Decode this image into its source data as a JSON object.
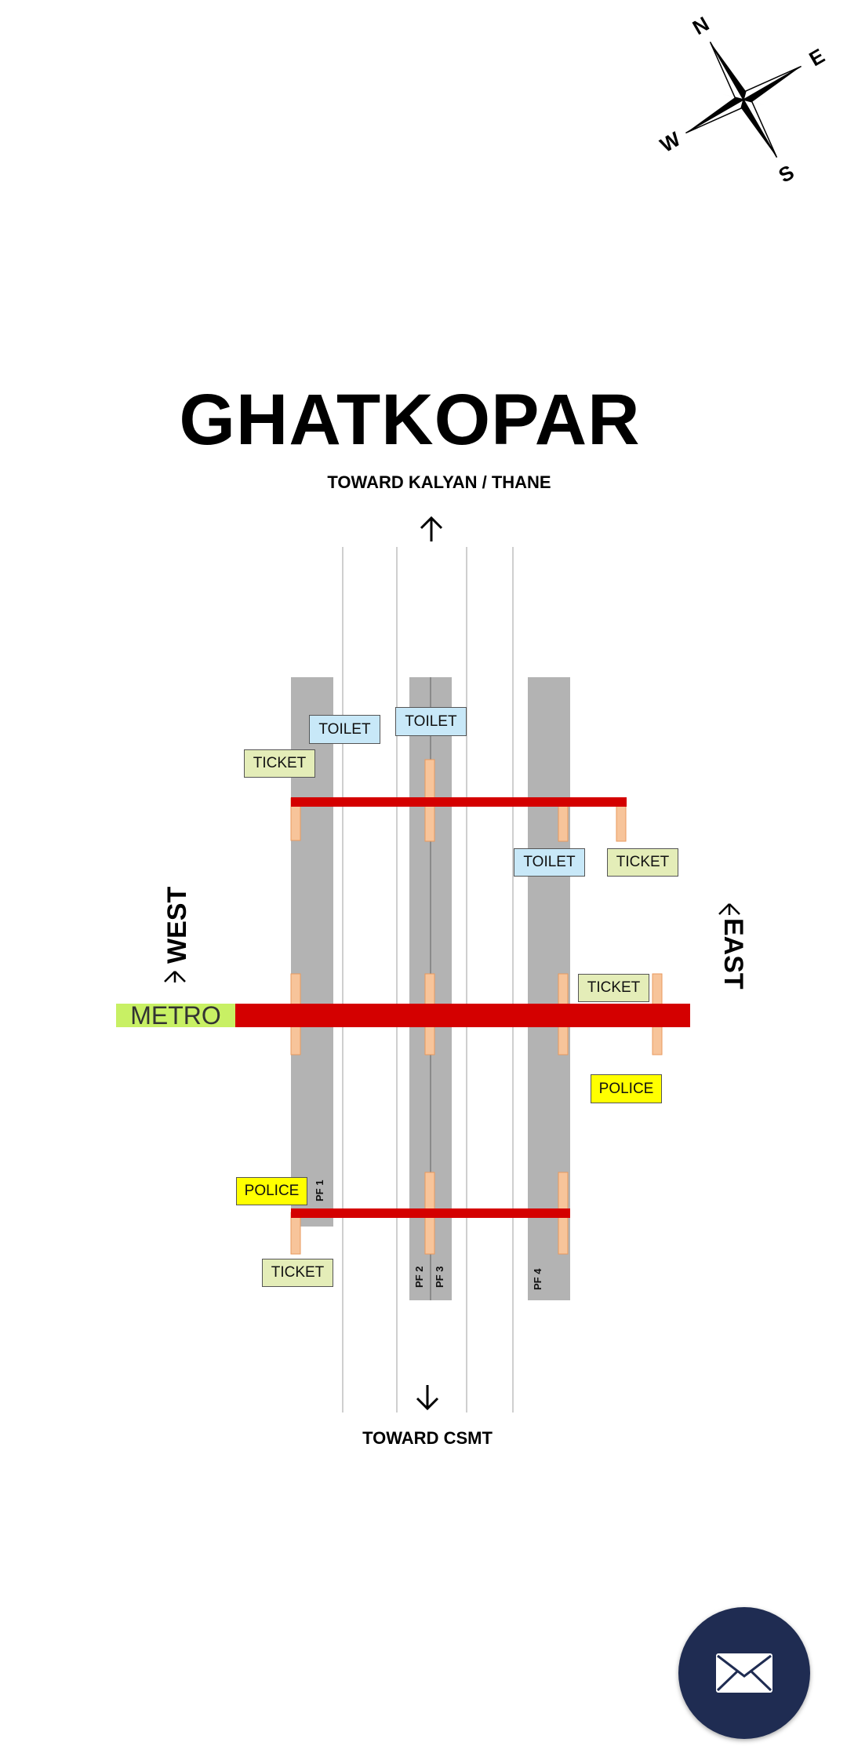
{
  "station": {
    "name": "GHATKOPAR",
    "toward_north": "TOWARD KALYAN / THANE",
    "toward_south": "TOWARD CSMT",
    "west_label": "WEST",
    "east_label": "EAST"
  },
  "compass": {
    "n": "N",
    "e": "E",
    "s": "S",
    "w": "W"
  },
  "platforms": {
    "pf1": "PF 1",
    "pf2": "PF 2",
    "pf3": "PF 3",
    "pf4": "PF 4"
  },
  "facilities": {
    "toilet_1": "TOILET",
    "toilet_2": "TOILET",
    "toilet_3": "TOILET",
    "ticket_1": "TICKET",
    "ticket_2": "TICKET",
    "ticket_3": "TICKET",
    "ticket_4": "TICKET",
    "police_1": "POLICE",
    "police_2": "POLICE",
    "metro": "METRO"
  },
  "colors": {
    "bridge": "#d40000",
    "platform": "#b3b3b3",
    "stairs": "#f7c49a",
    "toilet": "#c8e8f8",
    "ticket": "#e4edb8",
    "police": "#ffff00",
    "metro": "#c8f064",
    "fab": "#1f2c52"
  },
  "fab": {
    "icon": "mail-icon"
  }
}
